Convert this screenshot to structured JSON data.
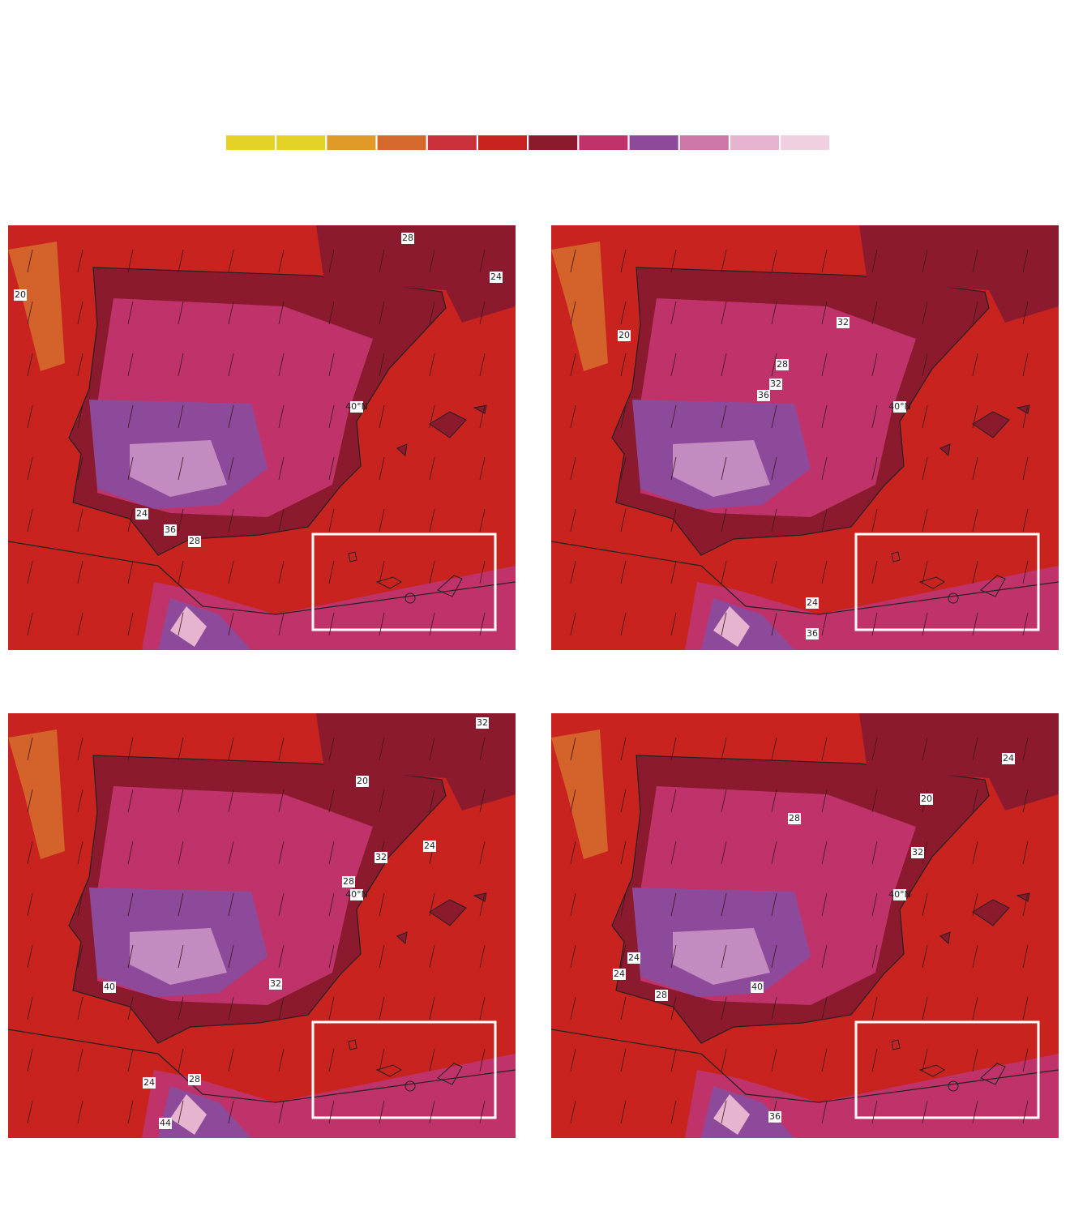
{
  "legend": {
    "colors": [
      "#e6d227",
      "#e6d227",
      "#e09a28",
      "#d5692c",
      "#c8303a",
      "#c8231f",
      "#8b1a2e",
      "#c0336a",
      "#8e4a9a",
      "#cd77a8",
      "#e6b4cf",
      "#f0cfe0"
    ]
  },
  "panels": [
    {
      "labels": [
        "28",
        "24",
        "20",
        "40°N",
        "24",
        "36",
        "28"
      ]
    },
    {
      "labels": [
        "20",
        "32",
        "28",
        "32",
        "36",
        "40°N",
        "24",
        "36"
      ]
    },
    {
      "labels": [
        "20",
        "24",
        "32",
        "28",
        "40°N",
        "40",
        "32",
        "24",
        "28",
        "44",
        "32"
      ]
    },
    {
      "labels": [
        "24",
        "20",
        "28",
        "32",
        "40°N",
        "24",
        "24",
        "28",
        "40",
        "36"
      ]
    }
  ]
}
